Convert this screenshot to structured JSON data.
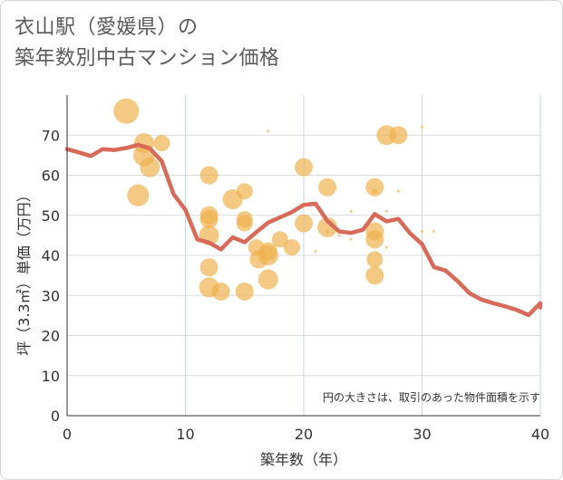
{
  "title_lines": [
    "衣山駅（愛媛県）の",
    "築年数別中古マンション価格"
  ],
  "chart_data": {
    "type": "scatter",
    "title": "衣山駅（愛媛県）の築年数別中古マンション価格",
    "xlabel": "築年数（年）",
    "ylabel": "坪（3.3㎡）単価（万円）",
    "note": "円の大きさは、取引のあった物件面積を示す",
    "xlim": [
      0,
      40
    ],
    "ylim": [
      0,
      80
    ],
    "x_ticks": [
      0,
      10,
      20,
      30,
      40
    ],
    "y_ticks": [
      0,
      10,
      20,
      30,
      40,
      50,
      60,
      70
    ],
    "grid": true,
    "bubble_color": "#f0b24e",
    "line_color": "#d86a5a",
    "points": [
      {
        "x": 5,
        "y": 76,
        "s": 14
      },
      {
        "x": 6.5,
        "y": 68,
        "s": 11
      },
      {
        "x": 6.5,
        "y": 65,
        "s": 12
      },
      {
        "x": 7,
        "y": 62,
        "s": 11
      },
      {
        "x": 8,
        "y": 68,
        "s": 9
      },
      {
        "x": 6,
        "y": 55,
        "s": 12
      },
      {
        "x": 12,
        "y": 60,
        "s": 10
      },
      {
        "x": 12,
        "y": 50,
        "s": 10
      },
      {
        "x": 12,
        "y": 49,
        "s": 10
      },
      {
        "x": 12,
        "y": 45,
        "s": 11
      },
      {
        "x": 12,
        "y": 37,
        "s": 10
      },
      {
        "x": 12,
        "y": 32,
        "s": 11
      },
      {
        "x": 13,
        "y": 31,
        "s": 10
      },
      {
        "x": 14,
        "y": 54,
        "s": 11
      },
      {
        "x": 15,
        "y": 56,
        "s": 9
      },
      {
        "x": 15,
        "y": 49,
        "s": 9
      },
      {
        "x": 15,
        "y": 48,
        "s": 9
      },
      {
        "x": 15,
        "y": 31,
        "s": 10
      },
      {
        "x": 16,
        "y": 42,
        "s": 9
      },
      {
        "x": 16.2,
        "y": 39,
        "s": 10
      },
      {
        "x": 17,
        "y": 40,
        "s": 11
      },
      {
        "x": 17,
        "y": 41,
        "s": 10
      },
      {
        "x": 17,
        "y": 34,
        "s": 11
      },
      {
        "x": 17,
        "y": 71,
        "s": 1.5
      },
      {
        "x": 18,
        "y": 44,
        "s": 9
      },
      {
        "x": 19,
        "y": 42,
        "s": 9
      },
      {
        "x": 20,
        "y": 62,
        "s": 10
      },
      {
        "x": 20,
        "y": 48,
        "s": 10
      },
      {
        "x": 21,
        "y": 53,
        "s": 1.5
      },
      {
        "x": 21,
        "y": 41,
        "s": 1.5
      },
      {
        "x": 22,
        "y": 57,
        "s": 10
      },
      {
        "x": 22,
        "y": 47,
        "s": 11
      },
      {
        "x": 22,
        "y": 46,
        "s": 2
      },
      {
        "x": 23,
        "y": 45,
        "s": 1.5
      },
      {
        "x": 24,
        "y": 51,
        "s": 1.5
      },
      {
        "x": 24,
        "y": 44,
        "s": 1.5
      },
      {
        "x": 26,
        "y": 57,
        "s": 10
      },
      {
        "x": 26,
        "y": 56,
        "s": 3
      },
      {
        "x": 26,
        "y": 46,
        "s": 10
      },
      {
        "x": 26,
        "y": 44,
        "s": 10
      },
      {
        "x": 26,
        "y": 39,
        "s": 9
      },
      {
        "x": 26,
        "y": 35,
        "s": 10
      },
      {
        "x": 27,
        "y": 70,
        "s": 11
      },
      {
        "x": 27,
        "y": 51,
        "s": 1.5
      },
      {
        "x": 27,
        "y": 42,
        "s": 1.5
      },
      {
        "x": 28,
        "y": 70,
        "s": 10
      },
      {
        "x": 28,
        "y": 56,
        "s": 1.5
      },
      {
        "x": 30,
        "y": 72,
        "s": 1.5
      },
      {
        "x": 30,
        "y": 46,
        "s": 1.5
      },
      {
        "x": 31,
        "y": 46,
        "s": 1.5
      }
    ],
    "trend_line": [
      [
        0,
        66.5
      ],
      [
        1,
        65.7
      ],
      [
        2,
        64.8
      ],
      [
        3,
        66.5
      ],
      [
        4,
        66.3
      ],
      [
        5,
        66.8
      ],
      [
        6,
        67.6
      ],
      [
        7,
        66.7
      ],
      [
        8,
        63.5
      ],
      [
        9,
        55.3
      ],
      [
        10,
        51.4
      ],
      [
        11,
        44.0
      ],
      [
        12,
        43.2
      ],
      [
        13,
        41.5
      ],
      [
        14,
        44.5
      ],
      [
        15,
        43.3
      ],
      [
        16,
        45.8
      ],
      [
        17,
        48.2
      ],
      [
        18,
        49.5
      ],
      [
        19,
        50.8
      ],
      [
        20,
        52.6
      ],
      [
        21,
        52.9
      ],
      [
        22,
        48.6
      ],
      [
        23,
        46.0
      ],
      [
        24,
        45.6
      ],
      [
        25,
        46.4
      ],
      [
        26,
        50.3
      ],
      [
        27,
        48.5
      ],
      [
        28,
        49.1
      ],
      [
        29,
        45.5
      ],
      [
        30,
        42.8
      ],
      [
        31,
        37.1
      ],
      [
        32,
        36.2
      ],
      [
        33,
        33.6
      ],
      [
        34,
        30.6
      ],
      [
        35,
        29.0
      ],
      [
        36,
        28.1
      ],
      [
        37,
        27.3
      ],
      [
        38,
        26.4
      ],
      [
        39,
        25.1
      ],
      [
        40,
        28.1
      ],
      [
        41,
        27.0
      ]
    ]
  }
}
